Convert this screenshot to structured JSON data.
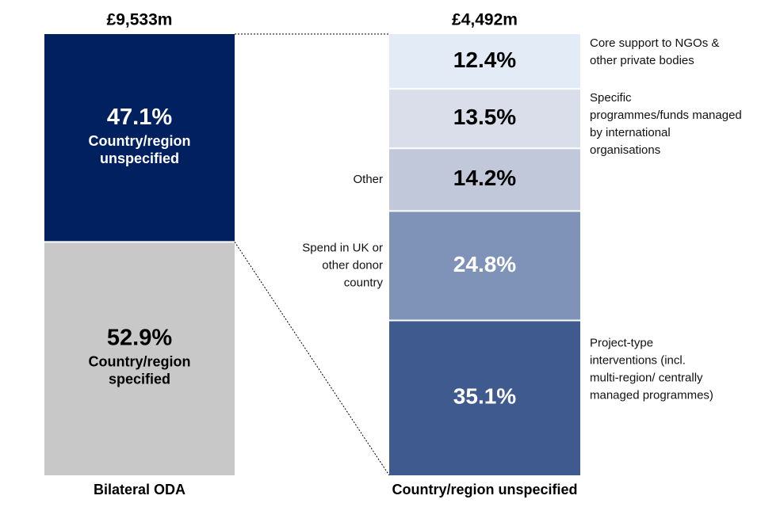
{
  "chart_data": {
    "type": "bar",
    "stacked": true,
    "orientation": "vertical",
    "bars": [
      {
        "label": "Bilateral ODA",
        "total": "£9,533m",
        "segments": [
          {
            "pct_label": "52.9%",
            "value": 52.9,
            "category": "Country/region specified",
            "color": "#c8c8c8",
            "text_color": "#000000"
          },
          {
            "pct_label": "47.1%",
            "value": 47.1,
            "category": "Country/region unspecified",
            "color": "#002060",
            "text_color": "#ffffff"
          }
        ]
      },
      {
        "label": "Country/region unspecified",
        "total": "£4,492m",
        "segments": [
          {
            "pct_label": "35.1%",
            "value": 35.1,
            "category": "Project-type interventions (incl. multi-region/ centrally managed programmes)",
            "label_side": "right",
            "color": "#3f5a8e",
            "text_color": "#ffffff"
          },
          {
            "pct_label": "24.8%",
            "value": 24.8,
            "category": "Spend in UK or other donor country",
            "label_side": "left",
            "color": "#7f93b8",
            "text_color": "#ffffff"
          },
          {
            "pct_label": "14.2%",
            "value": 14.2,
            "category": "Other",
            "label_side": "left",
            "color": "#c0c8da",
            "text_color": "#000000"
          },
          {
            "pct_label": "13.5%",
            "value": 13.5,
            "category": "Specific programmes/funds managed by international organisations",
            "label_side": "right",
            "color": "#d9deea",
            "text_color": "#000000"
          },
          {
            "pct_label": "12.4%",
            "value": 12.4,
            "category": "Core support to NGOs & other private bodies",
            "label_side": "right",
            "color": "#e3ebf6",
            "text_color": "#000000"
          }
        ]
      }
    ],
    "title": "",
    "xlabel": "",
    "ylabel": "",
    "legend": "none",
    "grid": false
  }
}
